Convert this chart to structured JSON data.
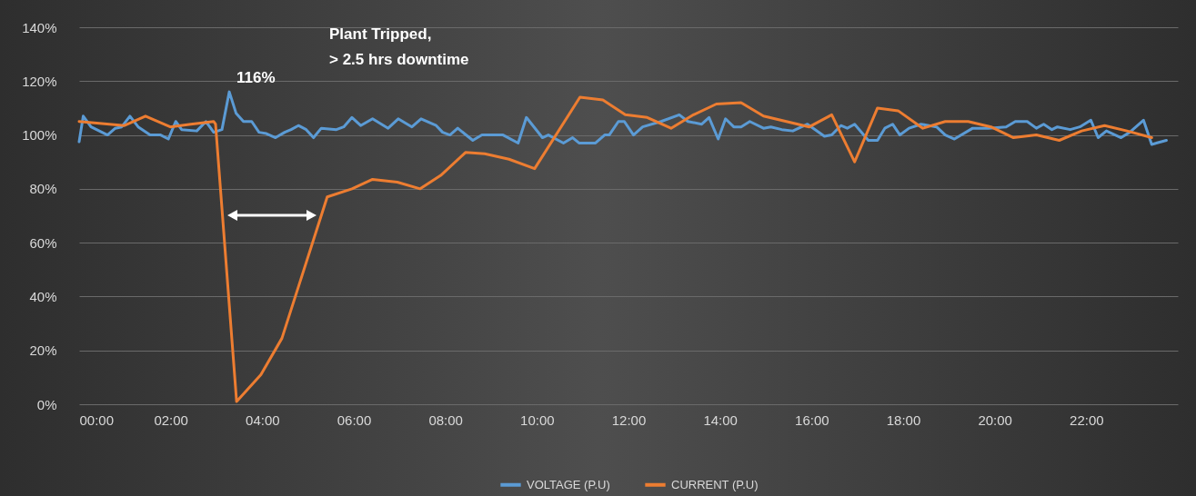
{
  "chart_data": {
    "type": "line",
    "xlim": [
      0,
      24
    ],
    "xticks": [
      {
        "value": 0,
        "label": "00:00"
      },
      {
        "value": 2,
        "label": "02:00"
      },
      {
        "value": 4,
        "label": "04:00"
      },
      {
        "value": 6,
        "label": "06:00"
      },
      {
        "value": 8,
        "label": "08:00"
      },
      {
        "value": 10,
        "label": "10:00"
      },
      {
        "value": 12,
        "label": "12:00"
      },
      {
        "value": 14,
        "label": "14:00"
      },
      {
        "value": 16,
        "label": "16:00"
      },
      {
        "value": 18,
        "label": "18:00"
      },
      {
        "value": 20,
        "label": "20:00"
      },
      {
        "value": 22,
        "label": "22:00"
      }
    ],
    "ylim": [
      0,
      140
    ],
    "yticks": [
      {
        "value": 0,
        "label": "0%"
      },
      {
        "value": 20,
        "label": "20%"
      },
      {
        "value": 40,
        "label": "40%"
      },
      {
        "value": 60,
        "label": "60%"
      },
      {
        "value": 80,
        "label": "80%"
      },
      {
        "value": 100,
        "label": "100%"
      },
      {
        "value": 120,
        "label": "120%"
      },
      {
        "value": 140,
        "label": "140%"
      }
    ],
    "grid": "y",
    "legend": "bottom",
    "line_style": "solid",
    "annotations": [
      {
        "text": "116%",
        "x": 3.28,
        "y": 116
      },
      "Plant Tripped,\n> 2.5 hrs downtime"
    ],
    "series": [
      {
        "name": "VOLTAGE (P.U)",
        "color": "#5b9bd5",
        "x": [
          0,
          0.09,
          0.26,
          0.62,
          0.79,
          0.93,
          1.11,
          1.29,
          1.55,
          1.78,
          1.95,
          2.11,
          2.24,
          2.57,
          2.77,
          2.94,
          3.12,
          3.28,
          3.43,
          3.59,
          3.77,
          3.93,
          4.09,
          4.29,
          4.49,
          4.63,
          4.79,
          4.96,
          5.12,
          5.29,
          5.62,
          5.78,
          5.96,
          6.15,
          6.41,
          6.75,
          6.97,
          7.27,
          7.47,
          7.8,
          7.94,
          8.1,
          8.27,
          8.6,
          8.8,
          9,
          9.26,
          9.59,
          9.77,
          10.12,
          10.25,
          10.58,
          10.78,
          10.92,
          11.28,
          11.48,
          11.58,
          11.78,
          11.91,
          12.11,
          12.31,
          12.71,
          13.11,
          13.3,
          13.6,
          13.76,
          13.96,
          14.12,
          14.3,
          14.46,
          14.65,
          14.95,
          15.11,
          15.35,
          15.59,
          15.91,
          16.28,
          16.44,
          16.64,
          16.78,
          16.94,
          17.24,
          17.44,
          17.6,
          17.77,
          17.93,
          18.13,
          18.39,
          18.73,
          18.92,
          19.12,
          19.52,
          19.86,
          20.25,
          20.45,
          20.71,
          20.91,
          21.07,
          21.25,
          21.37,
          21.65,
          21.86,
          22.1,
          22.26,
          22.44,
          22.76,
          22.95,
          23.25,
          23.43,
          23.75
        ],
        "values": [
          97.5,
          107,
          103,
          100,
          102.5,
          103,
          107,
          103,
          100,
          100,
          98.5,
          105,
          102,
          101.5,
          105,
          101,
          102,
          116,
          108,
          105,
          105,
          101,
          100.5,
          99,
          101,
          102,
          103.5,
          102,
          99,
          102.5,
          102,
          103,
          106.5,
          103.5,
          106,
          102.5,
          106,
          103,
          106,
          103.5,
          101,
          100,
          102.5,
          98,
          100,
          100,
          100,
          97,
          106.5,
          99,
          100,
          97,
          99,
          97,
          97,
          100,
          100,
          105,
          105,
          100,
          103,
          105,
          107.5,
          105,
          104,
          106.5,
          98.5,
          106,
          103,
          103,
          105,
          102.5,
          103,
          102,
          101.5,
          104,
          99.5,
          100,
          103.5,
          102.5,
          104,
          98,
          98,
          102.5,
          104,
          100,
          102.5,
          104,
          103,
          100,
          98.5,
          102.5,
          102.5,
          103,
          105,
          105,
          102.5,
          104,
          102,
          103,
          102,
          103,
          105.5,
          99,
          101.5,
          99,
          101,
          105.5,
          96.5,
          98
        ]
      },
      {
        "name": "CURRENT (P.U)",
        "color": "#ed7d31",
        "x": [
          0,
          0.99,
          1.45,
          1.99,
          2.44,
          2.94,
          2.98,
          3.44,
          3.97,
          4.43,
          5.42,
          5.96,
          6.41,
          6.95,
          7.45,
          7.9,
          8.44,
          8.86,
          9.39,
          9.95,
          10.94,
          11.44,
          11.93,
          12.41,
          12.93,
          13.42,
          13.92,
          14.46,
          14.95,
          15.45,
          15.95,
          16.44,
          16.94,
          17.44,
          17.89,
          18.43,
          18.92,
          19.42,
          19.92,
          20.41,
          20.91,
          21.41,
          21.9,
          22.4,
          22.89,
          23.43
        ],
        "values": [
          105,
          103.5,
          107,
          103,
          104,
          105,
          104,
          1,
          11,
          24.5,
          77,
          80,
          83.5,
          82.5,
          80,
          85,
          93.5,
          93,
          91,
          87.5,
          114,
          113,
          107.5,
          106.5,
          102.5,
          107.5,
          111.5,
          112,
          107,
          105,
          103,
          107.5,
          90,
          110,
          109,
          102.5,
          105,
          105,
          103,
          99,
          100,
          98,
          101.5,
          103.5,
          101.5,
          99
        ]
      }
    ]
  }
}
